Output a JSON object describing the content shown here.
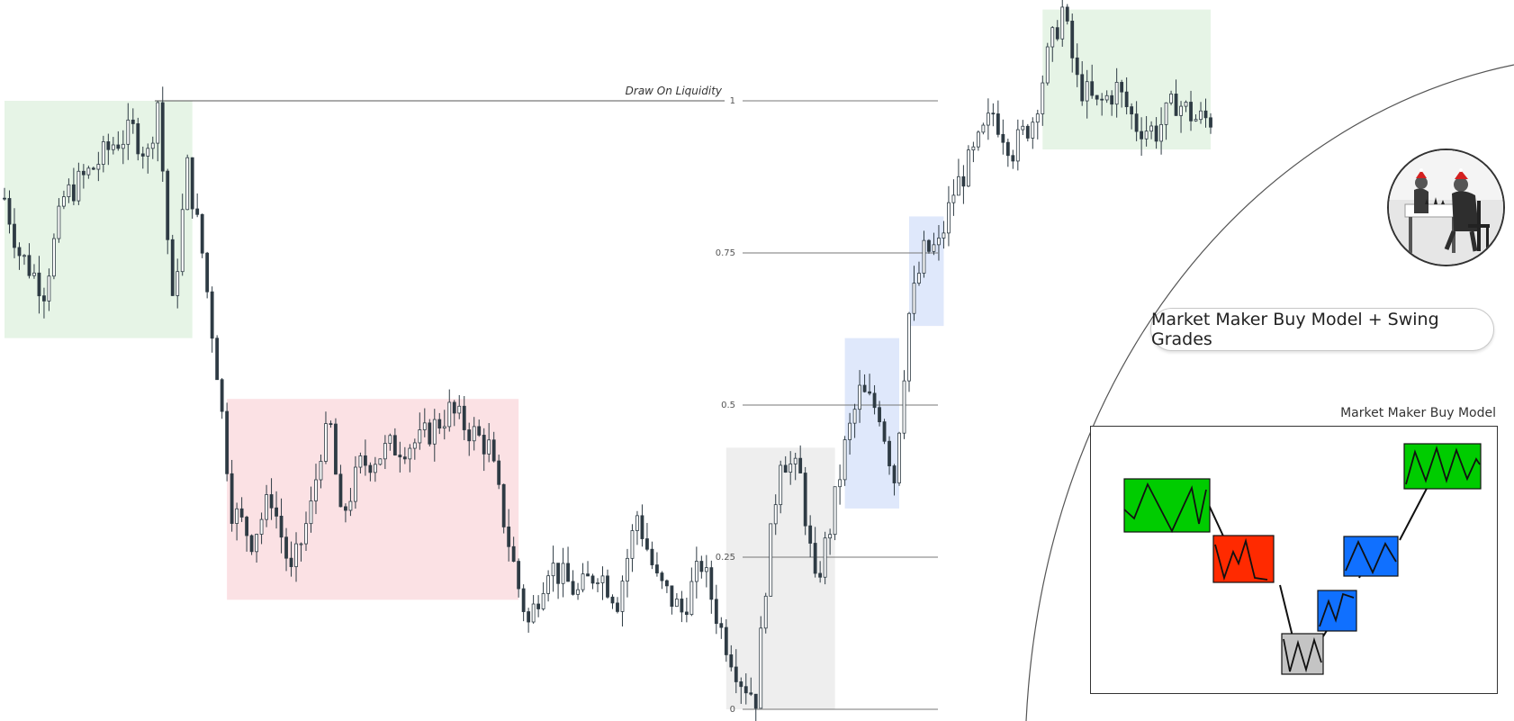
{
  "chart_data": {
    "type": "candlestick",
    "description_label": "Draw On Liquidity",
    "fib_levels": [
      {
        "value": 1,
        "label": "1"
      },
      {
        "value": 0.75,
        "label": "0.75"
      },
      {
        "value": 0.5,
        "label": "0.5"
      },
      {
        "value": 0.25,
        "label": "0.25"
      },
      {
        "value": 0,
        "label": "0"
      }
    ],
    "ylim": [
      0,
      1.15
    ],
    "zones": [
      {
        "name": "original-consolidation",
        "color": "#e6f4e6",
        "bar_start": 0,
        "bar_end": 38,
        "y_low": 0.61,
        "y_high": 1.0
      },
      {
        "name": "sell-side-consolidation",
        "color": "#fbe1e4",
        "bar_start": 45,
        "bar_end": 104,
        "y_low": 0.18,
        "y_high": 0.51
      },
      {
        "name": "discount-smart-money-reversal",
        "color": "#eeeeee",
        "bar_start": 146,
        "bar_end": 168,
        "y_low": 0.0,
        "y_high": 0.43
      },
      {
        "name": "buy-side-consolidation-1",
        "color": "#dfe8fb",
        "bar_start": 170,
        "bar_end": 181,
        "y_low": 0.33,
        "y_high": 0.61
      },
      {
        "name": "buy-side-consolidation-2",
        "color": "#dfe8fb",
        "bar_start": 183,
        "bar_end": 190,
        "y_low": 0.63,
        "y_high": 0.81
      },
      {
        "name": "draw-on-liquidity-target",
        "color": "#e6f4e6",
        "bar_start": 210,
        "bar_end": 244,
        "y_low": 0.92,
        "y_high": 1.15
      }
    ],
    "path_anchors": [
      [
        0,
        0.84
      ],
      [
        3,
        0.75
      ],
      [
        8,
        0.69
      ],
      [
        12,
        0.84
      ],
      [
        18,
        0.89
      ],
      [
        22,
        0.93
      ],
      [
        26,
        0.95
      ],
      [
        29,
        0.91
      ],
      [
        31,
        1.0
      ],
      [
        34,
        0.66
      ],
      [
        37,
        0.89
      ],
      [
        40,
        0.75
      ],
      [
        43,
        0.56
      ],
      [
        46,
        0.33
      ],
      [
        50,
        0.28
      ],
      [
        54,
        0.35
      ],
      [
        58,
        0.22
      ],
      [
        62,
        0.33
      ],
      [
        64,
        0.43
      ],
      [
        66,
        0.46
      ],
      [
        68,
        0.31
      ],
      [
        72,
        0.4
      ],
      [
        78,
        0.43
      ],
      [
        84,
        0.44
      ],
      [
        90,
        0.49
      ],
      [
        94,
        0.46
      ],
      [
        98,
        0.43
      ],
      [
        100,
        0.35
      ],
      [
        104,
        0.2
      ],
      [
        106,
        0.14
      ],
      [
        110,
        0.24
      ],
      [
        116,
        0.19
      ],
      [
        120,
        0.23
      ],
      [
        124,
        0.18
      ],
      [
        128,
        0.32
      ],
      [
        132,
        0.21
      ],
      [
        137,
        0.16
      ],
      [
        141,
        0.24
      ],
      [
        145,
        0.13
      ],
      [
        149,
        0.05
      ],
      [
        152,
        0.02
      ],
      [
        154,
        0.21
      ],
      [
        157,
        0.42
      ],
      [
        161,
        0.38
      ],
      [
        164,
        0.2
      ],
      [
        167,
        0.3
      ],
      [
        170,
        0.43
      ],
      [
        173,
        0.52
      ],
      [
        177,
        0.49
      ],
      [
        180,
        0.38
      ],
      [
        183,
        0.65
      ],
      [
        186,
        0.75
      ],
      [
        189,
        0.76
      ],
      [
        192,
        0.85
      ],
      [
        196,
        0.91
      ],
      [
        200,
        0.98
      ],
      [
        204,
        0.92
      ],
      [
        208,
        0.97
      ],
      [
        211,
        1.07
      ],
      [
        214,
        1.15
      ],
      [
        217,
        1.03
      ],
      [
        221,
        0.99
      ],
      [
        225,
        1.02
      ],
      [
        229,
        0.96
      ],
      [
        233,
        0.95
      ],
      [
        237,
        1.0
      ],
      [
        241,
        0.97
      ],
      [
        244,
        0.97
      ]
    ],
    "bar_count": 245
  },
  "title_pill": {
    "text": "Market Maker Buy Model + Swing Grades"
  },
  "model_diagram": {
    "caption": "Market Maker Buy Model",
    "blocks": [
      {
        "name": "green-block-left",
        "color": "#00cc00"
      },
      {
        "name": "red-block",
        "color": "#ff2a00"
      },
      {
        "name": "gray-block",
        "color": "#c4c4c4"
      },
      {
        "name": "blue-block-small",
        "color": "#1070ff"
      },
      {
        "name": "blue-block-large",
        "color": "#1070ff"
      },
      {
        "name": "green-block-right",
        "color": "#00cc00"
      }
    ]
  },
  "avatar": {
    "icon": "chess-players-photo-icon"
  }
}
